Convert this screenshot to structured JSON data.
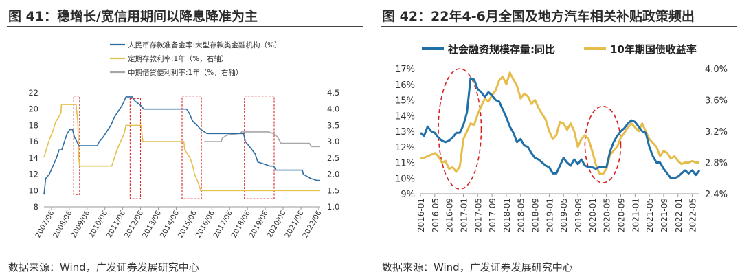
{
  "left": {
    "title": "图  41：稳增长/宽信用期间以降息降准为主",
    "source": "数据来源：Wind，广发证券发展研究中心",
    "chart_data": {
      "type": "line",
      "x_labels": [
        "2007/06",
        "2008/06",
        "2009/06",
        "2010/06",
        "2011/06",
        "2012/06",
        "2013/06",
        "2014/06",
        "2015/06",
        "2016/06",
        "2017/06",
        "2018/06",
        "2019/06",
        "2020/06",
        "2021/06",
        "2022/06"
      ],
      "y_left": {
        "min": 8,
        "max": 22,
        "ticks": [
          "8",
          "10",
          "12",
          "14",
          "16",
          "18",
          "20",
          "22"
        ]
      },
      "y_right": {
        "min": 1.0,
        "max": 4.5,
        "ticks": [
          "1.0",
          "1.5",
          "2.0",
          "2.5",
          "3.0",
          "3.5",
          "4.0",
          "4.5"
        ]
      },
      "legend_position": "top",
      "series": [
        {
          "name": "人民币存款准备金率:大型存款类金融机构（%）",
          "color": "#2f6da3",
          "axis": "left",
          "points": [
            [
              2007.0,
              9.5
            ],
            [
              2007.1,
              11.5
            ],
            [
              2007.3,
              12.0
            ],
            [
              2007.5,
              13.0
            ],
            [
              2007.7,
              14.0
            ],
            [
              2007.85,
              15.0
            ],
            [
              2008.0,
              15.0
            ],
            [
              2008.15,
              16.0
            ],
            [
              2008.3,
              17.0
            ],
            [
              2008.45,
              17.5
            ],
            [
              2008.6,
              17.5
            ],
            [
              2008.72,
              16.5
            ],
            [
              2008.85,
              16.0
            ],
            [
              2008.95,
              15.5
            ],
            [
              2009.5,
              15.5
            ],
            [
              2010.0,
              15.5
            ],
            [
              2010.1,
              16.0
            ],
            [
              2010.3,
              16.5
            ],
            [
              2010.45,
              17.0
            ],
            [
              2010.6,
              17.5
            ],
            [
              2010.75,
              18.0
            ],
            [
              2010.85,
              18.5
            ],
            [
              2010.95,
              19.0
            ],
            [
              2011.1,
              19.5
            ],
            [
              2011.25,
              20.0
            ],
            [
              2011.4,
              20.5
            ],
            [
              2011.5,
              21.0
            ],
            [
              2011.6,
              21.5
            ],
            [
              2011.95,
              21.5
            ],
            [
              2012.1,
              21.0
            ],
            [
              2012.4,
              20.5
            ],
            [
              2012.6,
              20.0
            ],
            [
              2015.0,
              20.0
            ],
            [
              2015.15,
              19.5
            ],
            [
              2015.35,
              18.5
            ],
            [
              2015.6,
              18.0
            ],
            [
              2015.8,
              17.5
            ],
            [
              2016.15,
              17.0
            ],
            [
              2018.2,
              17.0
            ],
            [
              2018.3,
              16.0
            ],
            [
              2018.5,
              15.5
            ],
            [
              2018.85,
              14.5
            ],
            [
              2019.0,
              13.5
            ],
            [
              2019.7,
              13.0
            ],
            [
              2019.9,
              13.0
            ],
            [
              2020.0,
              12.5
            ],
            [
              2021.5,
              12.5
            ],
            [
              2021.55,
              12.0
            ],
            [
              2021.95,
              11.5
            ],
            [
              2022.3,
              11.25
            ],
            [
              2022.5,
              11.25
            ]
          ]
        },
        {
          "name": "定期存款利率:1年（%，右轴）",
          "color": "#e3c14d",
          "axis": "right",
          "points": [
            [
              2007.0,
              2.52
            ],
            [
              2007.15,
              2.79
            ],
            [
              2007.3,
              3.06
            ],
            [
              2007.5,
              3.33
            ],
            [
              2007.65,
              3.6
            ],
            [
              2007.95,
              3.87
            ],
            [
              2007.98,
              4.14
            ],
            [
              2008.8,
              4.14
            ],
            [
              2008.85,
              3.87
            ],
            [
              2008.9,
              3.6
            ],
            [
              2008.95,
              2.52
            ],
            [
              2009.0,
              2.25
            ],
            [
              2010.8,
              2.25
            ],
            [
              2010.95,
              2.5
            ],
            [
              2011.1,
              2.75
            ],
            [
              2011.3,
              3.0
            ],
            [
              2011.5,
              3.25
            ],
            [
              2011.6,
              3.5
            ],
            [
              2012.45,
              3.5
            ],
            [
              2012.5,
              3.25
            ],
            [
              2012.55,
              3.0
            ],
            [
              2014.85,
              3.0
            ],
            [
              2014.9,
              2.75
            ],
            [
              2015.2,
              2.5
            ],
            [
              2015.35,
              2.25
            ],
            [
              2015.45,
              2.0
            ],
            [
              2015.65,
              1.75
            ],
            [
              2015.8,
              1.5
            ],
            [
              2022.5,
              1.5
            ]
          ]
        },
        {
          "name": "中期借贷便利利率:1年（%，右轴）",
          "color": "#a6a6a6",
          "axis": "right",
          "points": [
            [
              2016.0,
              3.0
            ],
            [
              2016.05,
              3.0
            ],
            [
              2016.95,
              3.0
            ],
            [
              2017.0,
              3.1
            ],
            [
              2017.25,
              3.2
            ],
            [
              2017.95,
              3.25
            ],
            [
              2018.1,
              3.3
            ],
            [
              2019.6,
              3.3
            ],
            [
              2019.85,
              3.25
            ],
            [
              2020.1,
              3.15
            ],
            [
              2020.3,
              2.95
            ],
            [
              2021.9,
              2.95
            ],
            [
              2022.0,
              2.85
            ],
            [
              2022.5,
              2.85
            ]
          ]
        }
      ],
      "highlight_boxes": [
        {
          "from": "2008/09",
          "to": "2009/01",
          "ymin": 9.5,
          "ymax": 21.6
        },
        {
          "from": "2011/11",
          "to": "2012/06",
          "ymin": 9.0,
          "ymax": 21.3
        },
        {
          "from": "2014/10",
          "to": "2015/11",
          "ymin": 9.0,
          "ymax": 21.6
        },
        {
          "from": "2018/04",
          "to": "2019/12",
          "ymin": 9.0,
          "ymax": 21.6
        }
      ]
    }
  },
  "right": {
    "title": "图  42：22年4-6月全国及地方汽车相关补贴政策频出",
    "source": "数据来源：Wind，广发证券发展研究中心",
    "chart_data": {
      "type": "line",
      "x_labels": [
        "2016-01",
        "2016-05",
        "2016-09",
        "2017-01",
        "2017-05",
        "2017-09",
        "2018-01",
        "2018-05",
        "2018-09",
        "2019-01",
        "2019-05",
        "2019-09",
        "2020-01",
        "2020-05",
        "2020-09",
        "2021-01",
        "2021-05",
        "2021-09",
        "2022-01",
        "2022-05"
      ],
      "y_left": {
        "min": 9,
        "max": 17,
        "ticks": [
          "9%",
          "10%",
          "11%",
          "12%",
          "13%",
          "14%",
          "15%",
          "16%",
          "17%"
        ]
      },
      "y_right": {
        "min": 2.4,
        "max": 4.0,
        "ticks": [
          "2.4%",
          "2.8%",
          "3.2%",
          "3.6%",
          "4.0%"
        ]
      },
      "legend_position": "top",
      "series": [
        {
          "name": "社会融资规模存量:同比",
          "color": "#1f6fa8",
          "axis": "left",
          "values": [
            12.9,
            12.7,
            13.3,
            13.0,
            12.9,
            12.6,
            12.4,
            12.3,
            12.4,
            12.6,
            12.9,
            12.9,
            13.4,
            14.2,
            16.4,
            16.3,
            15.7,
            15.5,
            15.2,
            15.5,
            15.3,
            15.0,
            14.9,
            14.4,
            13.9,
            13.3,
            12.9,
            12.3,
            12.5,
            12.1,
            12.0,
            11.6,
            11.3,
            11.2,
            11.0,
            10.8,
            10.7,
            10.3,
            10.3,
            10.8,
            11.3,
            11.0,
            10.8,
            11.2,
            10.9,
            11.2,
            10.8,
            10.7,
            10.7,
            10.6,
            10.7,
            10.7,
            10.7,
            11.7,
            12.3,
            12.7,
            13.0,
            13.2,
            13.5,
            13.7,
            13.6,
            13.3,
            13.0,
            12.9,
            12.0,
            11.4,
            11.0,
            11.0,
            10.6,
            10.3,
            10.0,
            10.0,
            10.1,
            10.3,
            10.5,
            10.3,
            10.5,
            10.2,
            10.5
          ]
        },
        {
          "name": "10年期国债收益率",
          "color": "#e6bd4a",
          "axis": "right",
          "values": [
            2.85,
            2.86,
            2.88,
            2.9,
            2.92,
            2.88,
            2.8,
            2.82,
            2.72,
            2.74,
            2.68,
            2.75,
            3.1,
            3.2,
            3.3,
            3.28,
            3.42,
            3.52,
            3.62,
            3.58,
            3.66,
            3.72,
            3.85,
            3.9,
            3.8,
            3.95,
            3.86,
            3.78,
            3.62,
            3.68,
            3.65,
            3.55,
            3.6,
            3.5,
            3.42,
            3.35,
            3.2,
            3.1,
            3.15,
            3.32,
            3.3,
            3.22,
            3.3,
            3.2,
            3.0,
            3.1,
            3.15,
            3.1,
            2.95,
            2.78,
            2.66,
            2.65,
            2.72,
            2.9,
            2.95,
            3.0,
            3.12,
            3.18,
            3.25,
            3.3,
            3.25,
            3.2,
            3.3,
            3.2,
            3.1,
            3.05,
            3.0,
            2.88,
            2.95,
            2.92,
            2.85,
            2.88,
            2.82,
            2.78,
            2.8,
            2.8,
            2.82,
            2.8,
            2.8
          ]
        }
      ],
      "highlight_ellipses": [
        {
          "x_from": "2016-06",
          "x_to": "2017-06",
          "y_top_pct": 17.0,
          "y_bottom_pct": 9.3
        },
        {
          "x_from": "2019-11",
          "x_to": "2020-09",
          "y_top_pct": 14.6,
          "y_bottom_pct": 9.7
        }
      ]
    }
  }
}
